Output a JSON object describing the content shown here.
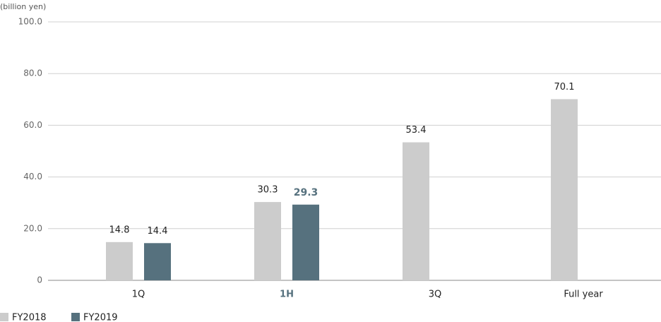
{
  "chart_data": {
    "type": "bar",
    "y_label": "(billion yen)",
    "categories": [
      "1Q",
      "1H",
      "3Q",
      "Full year"
    ],
    "series": [
      {
        "name": "FY2018",
        "color": "#cccccc",
        "values": [
          14.8,
          30.3,
          53.4,
          70.1
        ]
      },
      {
        "name": "FY2019",
        "color": "#56717e",
        "values": [
          14.4,
          29.3,
          null,
          null
        ]
      }
    ],
    "ylim": [
      0,
      100
    ],
    "yticks": [
      0,
      {
        "value": 20,
        "label": "20.0"
      },
      {
        "value": 40,
        "label": "40.0"
      },
      {
        "value": 60,
        "label": "60.0"
      },
      {
        "value": 80,
        "label": "80.0"
      },
      {
        "value": 100,
        "label": "100.0"
      }
    ],
    "grid": true
  }
}
